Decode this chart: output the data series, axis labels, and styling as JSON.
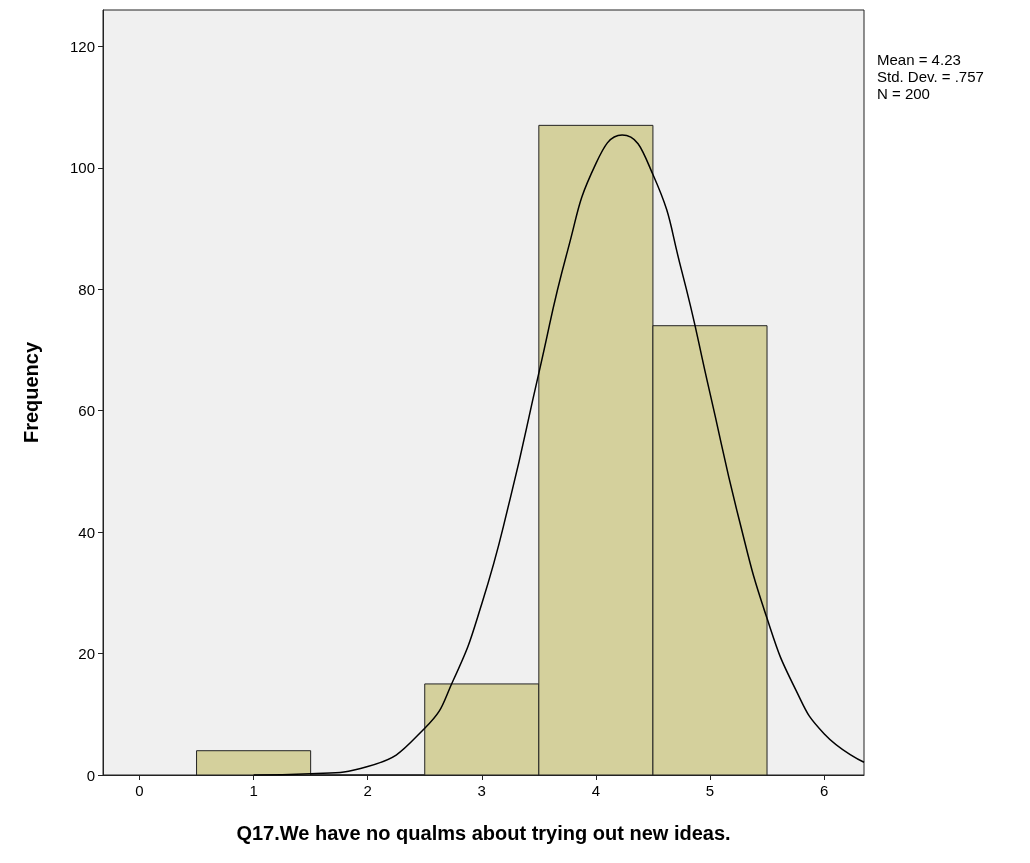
{
  "chart_data": {
    "type": "histogram",
    "xlabel": "Q17.We have no qualms about trying out new ideas.",
    "ylabel": "Frequency",
    "bins": [
      0.5,
      1.5,
      2.5,
      3.5,
      4.5,
      5.5
    ],
    "values": [
      4,
      0,
      15,
      107,
      74
    ],
    "color": "#d4d09c",
    "xlim": [
      -0.32,
      6.35
    ],
    "xticks": [
      0,
      1,
      2,
      3,
      4,
      5,
      6
    ],
    "ylim": [
      0,
      126
    ],
    "yticks": [
      0,
      20,
      40,
      60,
      80,
      100,
      120
    ],
    "marker": "none",
    "annotations": [
      "Mean = 4.23",
      "Std. Dev. = .757",
      "N = 200"
    ],
    "series": [
      {
        "type": "line",
        "color": "#000000",
        "x": [
          1,
          1.5,
          2,
          2.5,
          2.75,
          3,
          3.25,
          3.5,
          3.75,
          4,
          4.23,
          4.5,
          4.75,
          5,
          5.25,
          5.5,
          5.75,
          6,
          6.35
        ],
        "values": [
          0,
          0.2,
          1.4,
          7.7,
          15.6,
          28.2,
          45.6,
          66.2,
          86.2,
          100.7,
          105.4,
          98.9,
          83.2,
          62.9,
          42.5,
          25.8,
          14.1,
          6.8,
          2.1
        ]
      }
    ]
  }
}
